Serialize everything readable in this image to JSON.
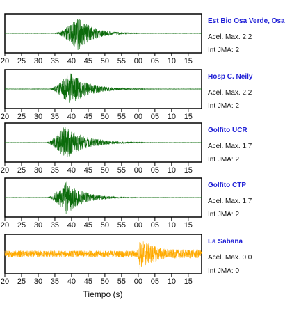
{
  "chart_data": {
    "type": "line",
    "x_ticks": [
      "20",
      "25",
      "30",
      "35",
      "40",
      "45",
      "50",
      "55",
      "00",
      "05",
      "10",
      "15"
    ],
    "xlabel": "Tiempo (s)",
    "panels": [
      {
        "name": "Est Bio Osa Verde, Osa",
        "acel": "Acel. Max. 2.2",
        "int": "Int JMA: 2",
        "color": "#0b6b0b",
        "onset": 34.5,
        "peak": 42.0,
        "amp": 0.95,
        "decay": 4.5,
        "noise": 0.01,
        "shape": "quake"
      },
      {
        "name": "Hosp C. Neily",
        "acel": "Acel. Max. 2.2",
        "int": "Int JMA: 2",
        "color": "#0b6b0b",
        "onset": 33.0,
        "peak": 39.5,
        "amp": 0.95,
        "decay": 5.5,
        "noise": 0.01,
        "shape": "quake"
      },
      {
        "name": "Golfito UCR",
        "acel": "Acel. Max. 1.7",
        "int": "Int JMA: 2",
        "color": "#0b6b0b",
        "onset": 32.0,
        "peak": 38.0,
        "amp": 0.95,
        "decay": 6.0,
        "noise": 0.01,
        "shape": "quake"
      },
      {
        "name": "Golfito CTP",
        "acel": "Acel. Max. 1.7",
        "int": "Int JMA: 2",
        "color": "#0b6b0b",
        "onset": 32.5,
        "peak": 38.5,
        "amp": 0.95,
        "decay": 5.0,
        "noise": 0.01,
        "shape": "quake"
      },
      {
        "name": "La Sabana",
        "acel": "Acel. Max. 0.0",
        "int": "Int JMA: 0",
        "color": "#ffaa00",
        "onset": 59.5,
        "peak": 60.5,
        "amp": 0.85,
        "decay": 7.0,
        "noise": 0.18,
        "shape": "noise"
      }
    ]
  }
}
